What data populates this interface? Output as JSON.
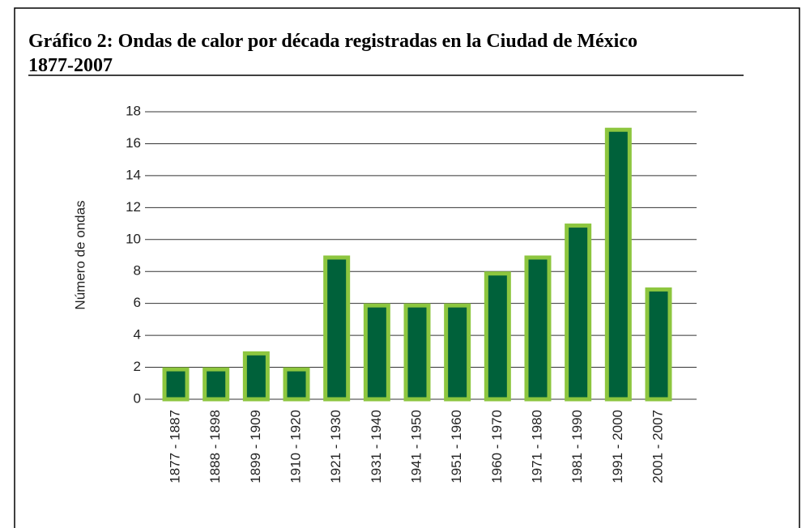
{
  "chart_data": {
    "type": "bar",
    "title": [
      "Gráfico 2: Ondas de calor por década registradas en la Ciudad de México",
      "1877-2007"
    ],
    "y_label": "Número de ondas",
    "categories": [
      "1877 - 1887",
      "1888 - 1898",
      "1899 - 1909",
      "1910 - 1920",
      "1921 - 1930",
      "1931 - 1940",
      "1941 - 1950",
      "1951 - 1960",
      "1960 - 1970",
      "1971 - 1980",
      "1981 - 1990",
      "1991 - 2000",
      "2001 - 2007"
    ],
    "values": [
      2,
      2,
      3,
      2,
      9,
      6,
      6,
      6,
      8,
      9,
      11,
      17,
      7
    ],
    "color": "#00613a",
    "edge_color": "#8dc63f",
    "ylim": [
      0,
      18
    ],
    "yticks": [
      0,
      2,
      4,
      6,
      8,
      10,
      12,
      14,
      16,
      18
    ],
    "grid": true
  }
}
